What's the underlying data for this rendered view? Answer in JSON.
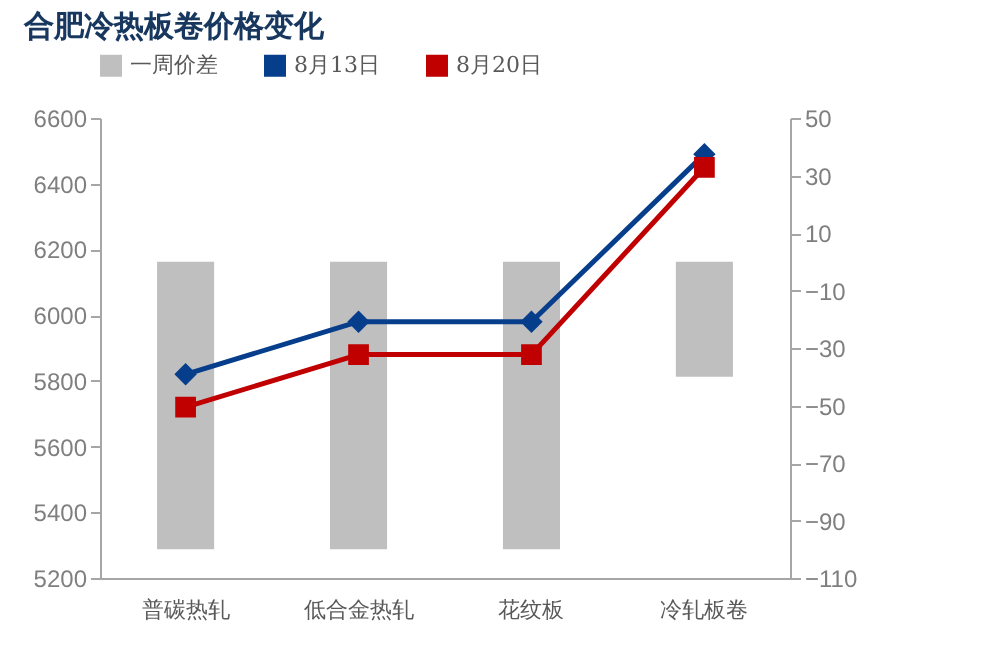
{
  "chart_data": {
    "type": "bar",
    "title": "合肥冷热板卷价格变化",
    "categories": [
      "普碳热轧",
      "低合金热轧",
      "花纹板",
      "冷轧板卷"
    ],
    "series": [
      {
        "name": "一周价差",
        "axis": "y2",
        "color": "#bfbfbf",
        "values": [
          -100,
          -100,
          -100,
          -40
        ]
      },
      {
        "name": "8月13日",
        "type": "line",
        "marker": "diamond",
        "color": "#063e8c",
        "values": [
          5820,
          5980,
          5980,
          6490
        ]
      },
      {
        "name": "8月20日",
        "type": "line",
        "marker": "square",
        "color": "#c00000",
        "values": [
          5720,
          5880,
          5880,
          6450
        ]
      }
    ],
    "ylim": [
      5200,
      6600
    ],
    "yticks": [
      5200,
      5400,
      5600,
      5800,
      6000,
      6200,
      6400,
      6600
    ],
    "y2lim": [
      -110,
      50
    ],
    "y2ticks": [
      -110,
      -90,
      -70,
      -50,
      -30,
      -10,
      10,
      30,
      50
    ],
    "grid": false,
    "legend": "top"
  }
}
